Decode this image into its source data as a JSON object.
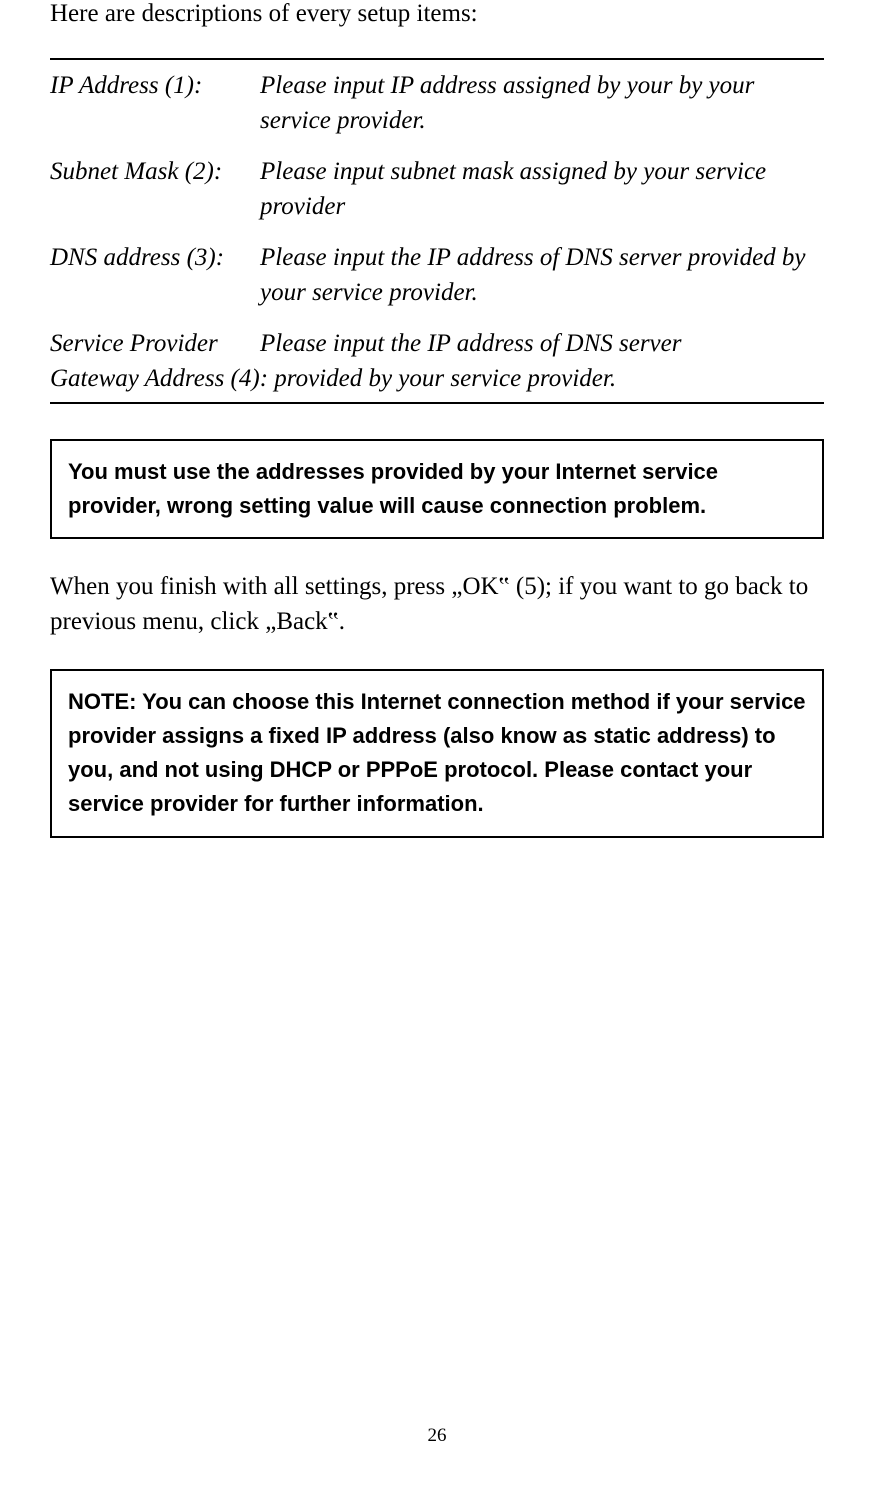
{
  "intro": "Here are descriptions of every setup items:",
  "definitions": {
    "row1": {
      "term": "IP Address (1):",
      "desc": "Please input IP address assigned by your   by your service provider."
    },
    "row2": {
      "term": "Subnet Mask (2):",
      "desc": "Please input subnet mask assigned by your service provider"
    },
    "row3": {
      "term": "DNS address (3):",
      "desc": "Please input the IP address of DNS server provided by your service provider."
    },
    "row4": {
      "line1_term": "Service Provider",
      "line1_desc": "Please input the IP address of DNS server",
      "line2": "Gateway Address (4): provided by your service provider."
    }
  },
  "box1_text": "You must use the addresses provided by your Internet service provider, wrong setting value will cause connection problem.",
  "mid_para": "When you finish with all settings, press „OK‟ (5); if you want to go back to previous menu, click „Back‟.",
  "box2_text": "NOTE: You can choose this Internet connection method if your service provider assigns a fixed IP address (also know as static address) to you, and not using DHCP or PPPoE protocol. Please contact your service provider for further information.",
  "page_number": "26"
}
